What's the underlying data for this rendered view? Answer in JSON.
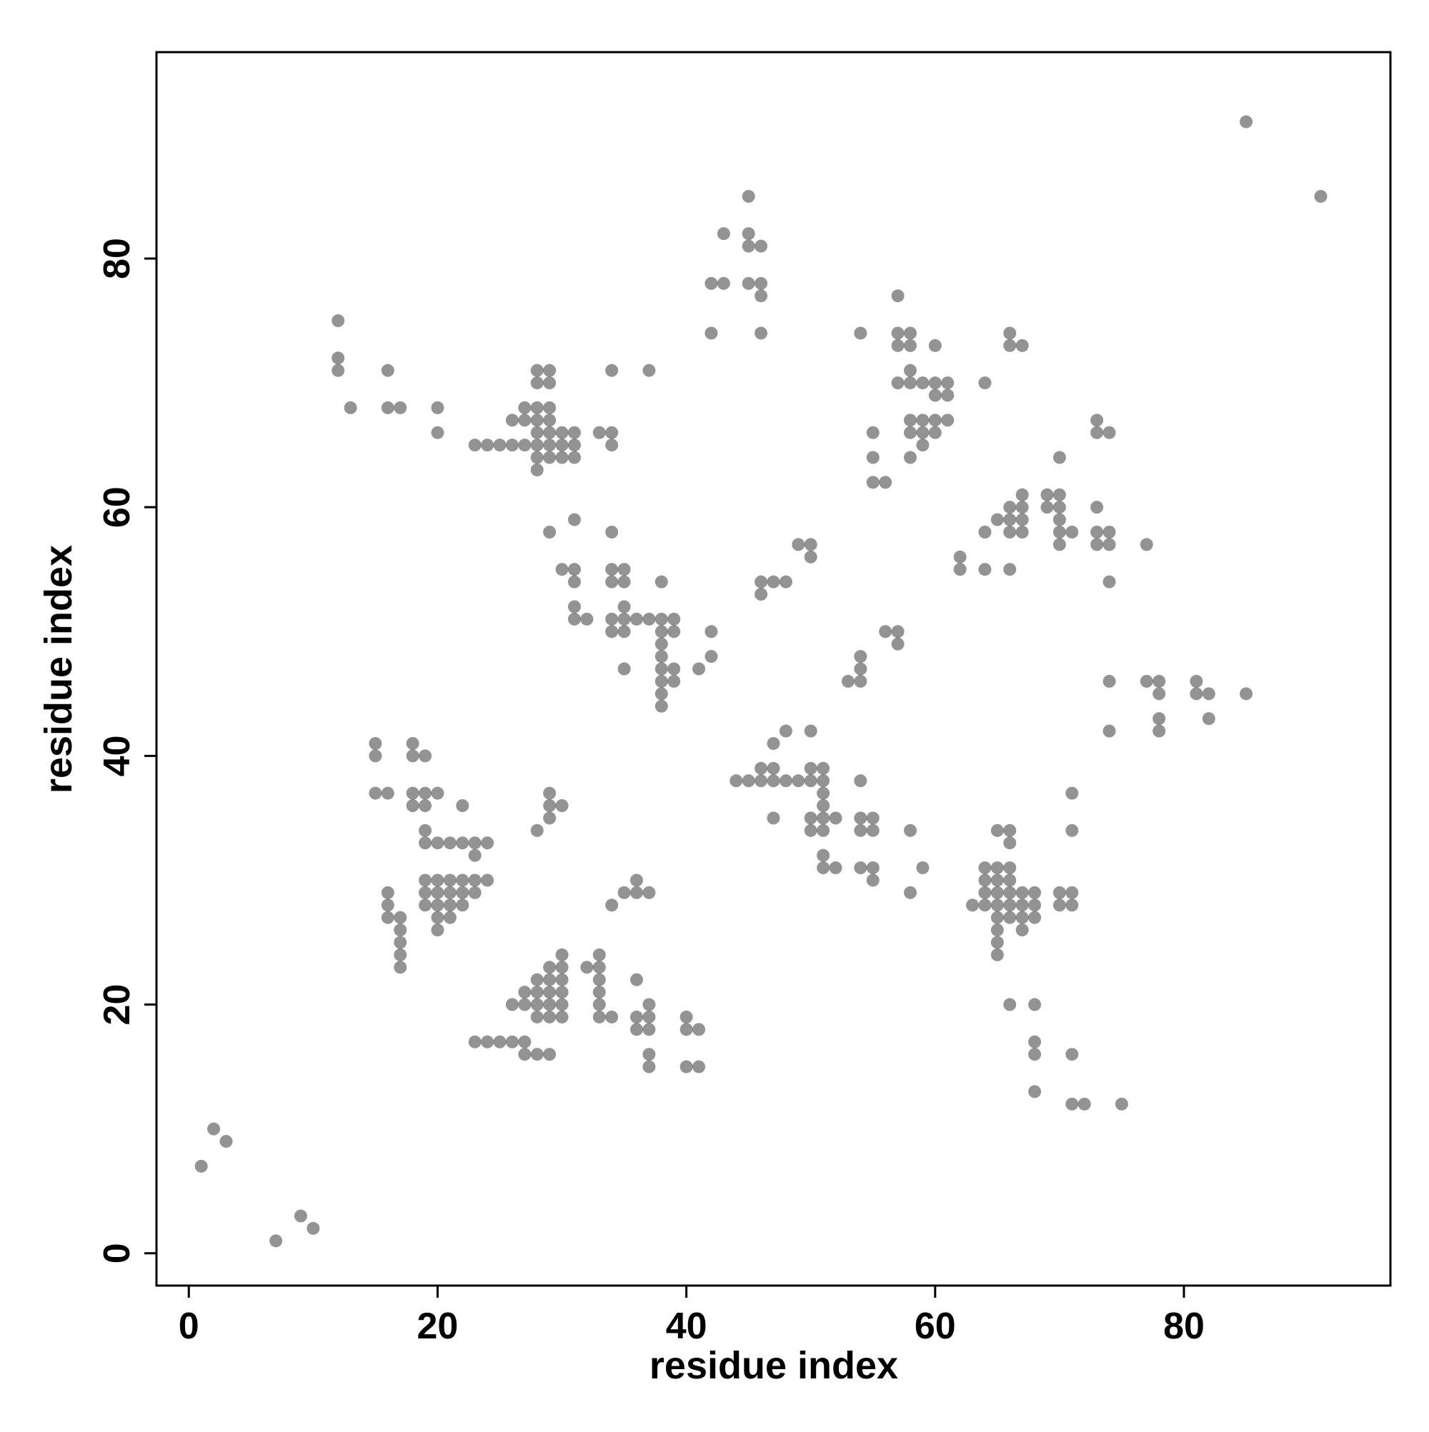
{
  "chart_data": {
    "type": "scatter",
    "x_label": "residue index",
    "y_label": "residue index",
    "color": "#3a3a3a",
    "xlim": [
      -2.6,
      96.6
    ],
    "ylim": [
      -2.6,
      96.6
    ],
    "xticks": [
      0,
      20,
      40,
      60,
      80
    ],
    "yticks": [
      0,
      20,
      40,
      60,
      80
    ],
    "x": [
      1,
      2,
      3,
      7,
      9,
      10,
      85,
      91,
      12,
      12,
      12,
      16,
      13,
      16,
      17,
      20,
      20,
      28,
      29,
      28,
      29,
      27,
      28,
      29,
      26,
      27,
      28,
      29,
      28,
      29,
      30,
      31,
      33,
      34,
      23,
      24,
      25,
      26,
      27,
      28,
      29,
      30,
      31,
      34,
      28,
      29,
      30,
      31,
      28,
      34,
      37,
      29,
      31,
      34,
      30,
      31,
      34,
      35,
      31,
      34,
      35,
      31,
      35,
      31,
      32,
      34,
      35,
      36,
      37,
      38,
      39,
      34,
      35,
      38,
      39,
      38,
      38,
      38,
      35,
      38,
      39,
      41,
      38,
      39,
      38,
      38,
      42,
      42,
      45,
      43,
      45,
      45,
      46,
      42,
      43,
      45,
      46,
      46,
      42,
      46,
      57,
      54,
      57,
      58,
      57,
      58,
      60,
      58,
      57,
      58,
      59,
      60,
      61,
      60,
      61,
      58,
      59,
      60,
      61,
      55,
      58,
      59,
      60,
      59,
      55,
      58,
      55,
      56,
      64,
      66,
      66,
      67,
      73,
      73,
      74,
      70,
      67,
      69,
      70,
      66,
      67,
      69,
      70,
      73,
      65,
      66,
      67,
      70,
      64,
      66,
      67,
      70,
      71,
      73,
      74,
      70,
      73,
      74,
      77,
      62,
      62,
      64,
      66,
      74,
      49,
      50,
      50,
      46,
      47,
      48,
      46,
      56,
      57,
      57,
      54,
      54,
      53,
      54,
      74,
      77,
      78,
      81,
      78,
      81,
      82,
      85,
      74,
      78,
      78,
      82,
      48,
      50,
      47,
      46,
      47,
      50,
      51,
      44,
      45,
      46,
      47,
      48,
      49,
      50,
      51,
      54,
      51,
      51,
      47,
      50,
      51,
      52,
      54,
      55,
      50,
      51,
      54,
      55,
      58,
      51,
      51,
      52,
      54,
      55,
      59,
      55,
      58,
      65,
      66,
      66,
      64,
      65,
      66,
      64,
      65,
      66,
      64,
      65,
      66,
      67,
      68,
      70,
      71,
      63,
      64,
      65,
      66,
      67,
      68,
      70,
      71,
      65,
      66,
      67,
      68,
      65,
      67,
      65,
      65,
      71,
      71,
      66,
      68,
      68,
      68,
      71,
      68,
      71,
      72,
      75,
      15,
      18,
      15,
      18,
      19,
      15,
      16,
      18,
      19,
      20,
      18,
      19,
      22,
      19,
      19,
      20,
      21,
      22,
      23,
      24,
      23,
      19,
      20,
      21,
      22,
      23,
      24,
      16,
      19,
      20,
      21,
      22,
      23,
      16,
      19,
      20,
      21,
      22,
      16,
      17,
      20,
      21,
      17,
      20,
      17,
      17,
      17,
      29,
      29,
      30,
      29,
      28,
      33,
      30,
      29,
      30,
      32,
      33,
      29,
      28,
      30,
      33,
      36,
      27,
      28,
      29,
      30,
      33,
      26,
      27,
      28,
      29,
      30,
      33,
      37,
      28,
      29,
      30,
      33,
      34,
      36,
      37,
      40,
      23,
      24,
      25,
      26,
      27,
      27,
      28,
      29,
      36,
      37,
      40,
      41,
      37,
      37,
      40,
      41,
      34,
      35,
      36,
      37,
      36
    ],
    "values": [
      7,
      10,
      9,
      1,
      3,
      2,
      91,
      85,
      75,
      72,
      71,
      71,
      68,
      68,
      68,
      68,
      66,
      71,
      71,
      70,
      70,
      68,
      68,
      68,
      67,
      67,
      67,
      67,
      66,
      66,
      66,
      66,
      66,
      66,
      65,
      65,
      65,
      65,
      65,
      65,
      65,
      65,
      65,
      65,
      64,
      64,
      64,
      64,
      63,
      71,
      71,
      58,
      59,
      58,
      55,
      55,
      55,
      55,
      54,
      54,
      54,
      52,
      52,
      51,
      51,
      51,
      51,
      51,
      51,
      51,
      51,
      50,
      50,
      50,
      50,
      54,
      49,
      48,
      47,
      47,
      47,
      47,
      46,
      46,
      45,
      44,
      50,
      48,
      85,
      82,
      82,
      81,
      81,
      78,
      78,
      78,
      78,
      77,
      74,
      74,
      77,
      74,
      74,
      74,
      73,
      73,
      73,
      71,
      70,
      70,
      70,
      70,
      70,
      69,
      69,
      67,
      67,
      67,
      67,
      66,
      66,
      66,
      66,
      65,
      64,
      64,
      62,
      62,
      70,
      74,
      73,
      73,
      67,
      66,
      66,
      64,
      61,
      61,
      61,
      60,
      60,
      60,
      60,
      60,
      59,
      59,
      59,
      59,
      58,
      58,
      58,
      58,
      58,
      58,
      58,
      57,
      57,
      57,
      57,
      56,
      55,
      55,
      55,
      54,
      57,
      57,
      56,
      54,
      54,
      54,
      53,
      50,
      50,
      49,
      48,
      47,
      46,
      46,
      46,
      46,
      46,
      46,
      45,
      45,
      45,
      45,
      42,
      43,
      42,
      43,
      42,
      42,
      41,
      39,
      39,
      39,
      39,
      38,
      38,
      38,
      38,
      38,
      38,
      38,
      38,
      38,
      37,
      36,
      35,
      35,
      35,
      35,
      35,
      35,
      34,
      34,
      34,
      34,
      34,
      32,
      31,
      31,
      31,
      31,
      31,
      30,
      29,
      34,
      34,
      33,
      31,
      31,
      31,
      30,
      30,
      30,
      29,
      29,
      29,
      29,
      29,
      29,
      29,
      28,
      28,
      28,
      28,
      28,
      28,
      28,
      28,
      27,
      27,
      27,
      27,
      26,
      26,
      25,
      24,
      37,
      34,
      20,
      20,
      17,
      16,
      16,
      13,
      12,
      12,
      12,
      41,
      41,
      40,
      40,
      40,
      37,
      37,
      37,
      37,
      37,
      36,
      36,
      36,
      34,
      33,
      33,
      33,
      33,
      33,
      33,
      32,
      30,
      30,
      30,
      30,
      30,
      30,
      29,
      29,
      29,
      29,
      29,
      29,
      28,
      28,
      28,
      28,
      28,
      27,
      27,
      27,
      27,
      26,
      26,
      25,
      24,
      23,
      37,
      36,
      36,
      35,
      34,
      24,
      24,
      23,
      23,
      23,
      23,
      22,
      22,
      22,
      22,
      22,
      21,
      21,
      21,
      21,
      21,
      20,
      20,
      20,
      20,
      20,
      20,
      20,
      19,
      19,
      19,
      19,
      19,
      19,
      19,
      19,
      17,
      17,
      17,
      17,
      17,
      16,
      16,
      16,
      18,
      18,
      18,
      18,
      16,
      15,
      15,
      15,
      28,
      29,
      29,
      29,
      30
    ]
  }
}
